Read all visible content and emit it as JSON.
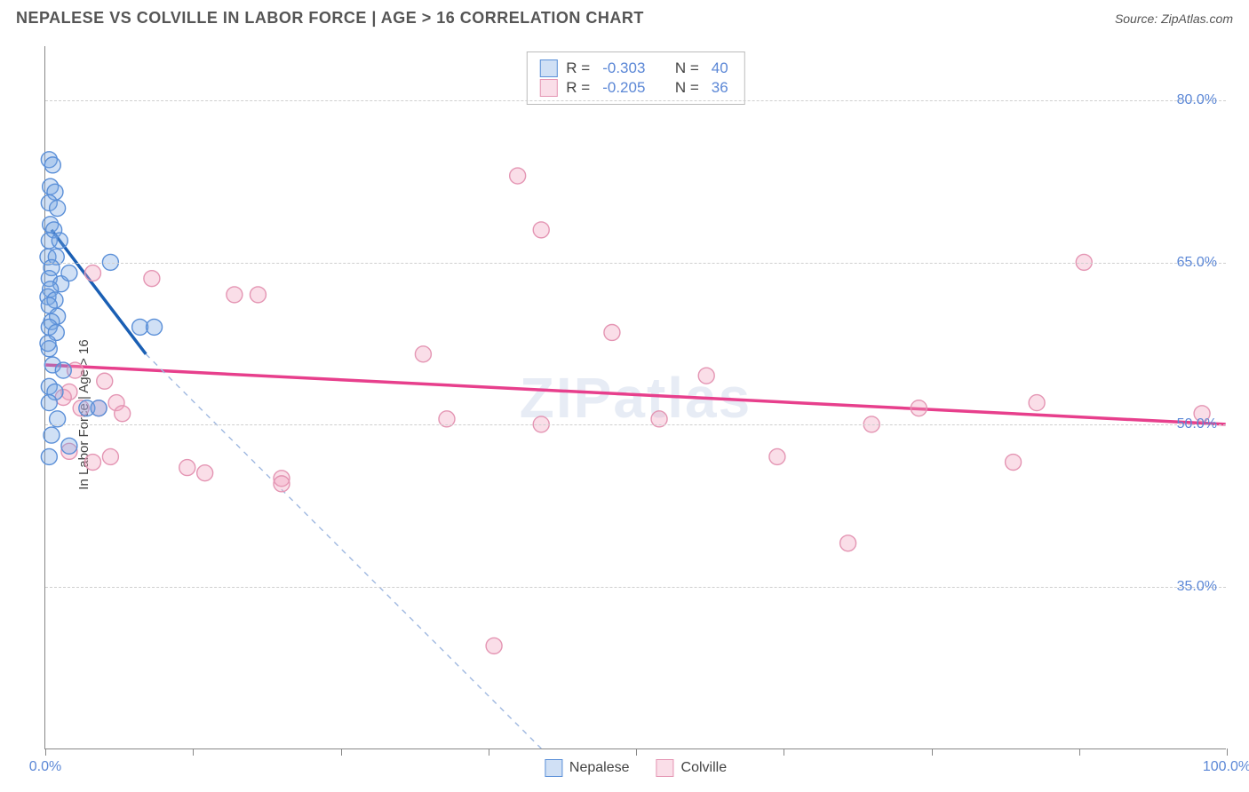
{
  "title": "NEPALESE VS COLVILLE IN LABOR FORCE | AGE > 16 CORRELATION CHART",
  "source_prefix": "Source: ",
  "source_name": "ZipAtlas.com",
  "watermark": "ZIPatlas",
  "chart": {
    "type": "scatter",
    "ylabel": "In Labor Force | Age > 16",
    "xlim": [
      0,
      100
    ],
    "ylim": [
      20,
      85
    ],
    "y_gridlines": [
      35,
      50,
      65,
      80
    ],
    "y_tick_labels": [
      "35.0%",
      "50.0%",
      "65.0%",
      "80.0%"
    ],
    "x_ticks": [
      0,
      12.5,
      25,
      37.5,
      50,
      62.5,
      75,
      87.5,
      100
    ],
    "x_tick_labels": {
      "0": "0.0%",
      "100": "100.0%"
    },
    "background_color": "#ffffff",
    "grid_color": "#cfcfcf",
    "axis_color": "#888888",
    "watermark_color": "rgba(120,150,200,0.18)",
    "label_color": "#5b87d6",
    "point_radius": 9,
    "point_stroke_width": 1.4,
    "series": [
      {
        "name": "Nepalese",
        "fill": "rgba(120,165,225,0.35)",
        "stroke": "#5a8fd8",
        "trend_color": "#1a5fb4",
        "trend_width": 3.5,
        "trend_dash_color": "#9fb8e0",
        "r": -0.303,
        "n": 40,
        "trend": {
          "x1": 0.5,
          "y1": 68,
          "x2": 8.5,
          "y2": 56.5
        },
        "trend_ext": {
          "x1": 8.5,
          "y1": 56.5,
          "x2": 42,
          "y2": 20
        },
        "points": [
          [
            0.3,
            74.5
          ],
          [
            0.6,
            74
          ],
          [
            0.4,
            72
          ],
          [
            0.8,
            71.5
          ],
          [
            0.3,
            70.5
          ],
          [
            1.0,
            70
          ],
          [
            0.4,
            68.5
          ],
          [
            0.7,
            68
          ],
          [
            0.3,
            67
          ],
          [
            1.2,
            67
          ],
          [
            0.2,
            65.5
          ],
          [
            0.9,
            65.5
          ],
          [
            5.5,
            65
          ],
          [
            0.5,
            64.5
          ],
          [
            0.3,
            63.5
          ],
          [
            1.3,
            63
          ],
          [
            0.4,
            62.5
          ],
          [
            0.2,
            61.8
          ],
          [
            0.8,
            61.5
          ],
          [
            0.3,
            61
          ],
          [
            1.0,
            60
          ],
          [
            2.0,
            64
          ],
          [
            0.5,
            59.5
          ],
          [
            0.3,
            59
          ],
          [
            0.9,
            58.5
          ],
          [
            8.0,
            59
          ],
          [
            9.2,
            59
          ],
          [
            0.3,
            57
          ],
          [
            0.6,
            55.5
          ],
          [
            1.5,
            55
          ],
          [
            0.3,
            53.5
          ],
          [
            0.8,
            53
          ],
          [
            0.3,
            52
          ],
          [
            1.0,
            50.5
          ],
          [
            3.5,
            51.5
          ],
          [
            4.5,
            51.5
          ],
          [
            0.5,
            49
          ],
          [
            2.0,
            48
          ],
          [
            0.3,
            47
          ],
          [
            0.2,
            57.5
          ]
        ]
      },
      {
        "name": "Colville",
        "fill": "rgba(240,160,190,0.35)",
        "stroke": "#e495b3",
        "trend_color": "#e73f8c",
        "trend_width": 3.5,
        "r": -0.205,
        "n": 36,
        "trend": {
          "x1": 0,
          "y1": 55.5,
          "x2": 100,
          "y2": 50
        },
        "points": [
          [
            4,
            64
          ],
          [
            9,
            63.5
          ],
          [
            2.5,
            55
          ],
          [
            5,
            54
          ],
          [
            2,
            53
          ],
          [
            6,
            52
          ],
          [
            1.5,
            52.5
          ],
          [
            3,
            51.5
          ],
          [
            4.5,
            51.5
          ],
          [
            6.5,
            51
          ],
          [
            2,
            47.5
          ],
          [
            5.5,
            47
          ],
          [
            4,
            46.5
          ],
          [
            12,
            46
          ],
          [
            13.5,
            45.5
          ],
          [
            16,
            62
          ],
          [
            20,
            45
          ],
          [
            18,
            62
          ],
          [
            20,
            44.5
          ],
          [
            32,
            56.5
          ],
          [
            34,
            50.5
          ],
          [
            40,
            73
          ],
          [
            42,
            68
          ],
          [
            42,
            50
          ],
          [
            48,
            58.5
          ],
          [
            52,
            50.5
          ],
          [
            56,
            54.5
          ],
          [
            62,
            47
          ],
          [
            68,
            39
          ],
          [
            70,
            50
          ],
          [
            74,
            51.5
          ],
          [
            82,
            46.5
          ],
          [
            84,
            52
          ],
          [
            88,
            65
          ],
          [
            98,
            51
          ],
          [
            38,
            29.5
          ]
        ]
      }
    ]
  },
  "legend_top": [
    {
      "swatch_fill": "rgba(120,165,225,0.35)",
      "swatch_stroke": "#5a8fd8",
      "r": "-0.303",
      "n": "40"
    },
    {
      "swatch_fill": "rgba(240,160,190,0.35)",
      "swatch_stroke": "#e495b3",
      "r": "-0.205",
      "n": "36"
    }
  ],
  "legend_bottom": [
    {
      "label": "Nepalese",
      "swatch_fill": "rgba(120,165,225,0.35)",
      "swatch_stroke": "#5a8fd8"
    },
    {
      "label": "Colville",
      "swatch_fill": "rgba(240,160,190,0.35)",
      "swatch_stroke": "#e495b3"
    }
  ],
  "text": {
    "r_label": "R =",
    "n_label": "N ="
  }
}
